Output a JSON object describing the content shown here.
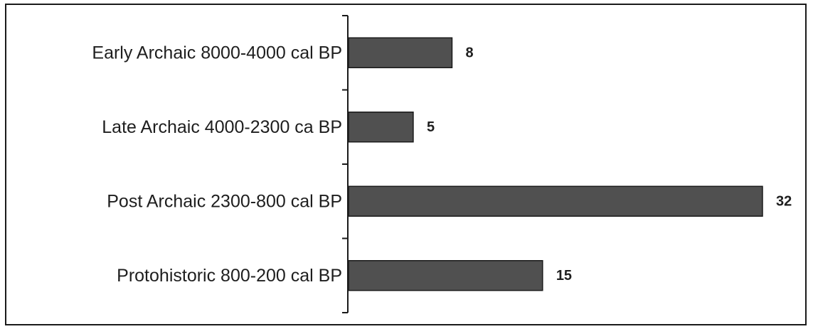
{
  "chart_data": {
    "type": "bar",
    "orientation": "horizontal",
    "categories": [
      "Early Archaic  8000-4000 cal BP",
      "Late Archaic  4000-2300 ca BP",
      "Post Archaic  2300-800 cal BP",
      "Protohistoric  800-200 cal BP"
    ],
    "values": [
      8,
      5,
      32,
      15
    ],
    "value_labels": [
      "8",
      "5",
      "32",
      "15"
    ],
    "title": "",
    "xlabel": "",
    "ylabel": "",
    "xlim": [
      0,
      32
    ],
    "grid": false,
    "legend": "none",
    "colors": {
      "bar": "#505050",
      "bar_edge": "#1a1a1a",
      "axis": "#1a1a1a",
      "text": "#1e1e1e",
      "frame": "#1a1a1a"
    }
  }
}
